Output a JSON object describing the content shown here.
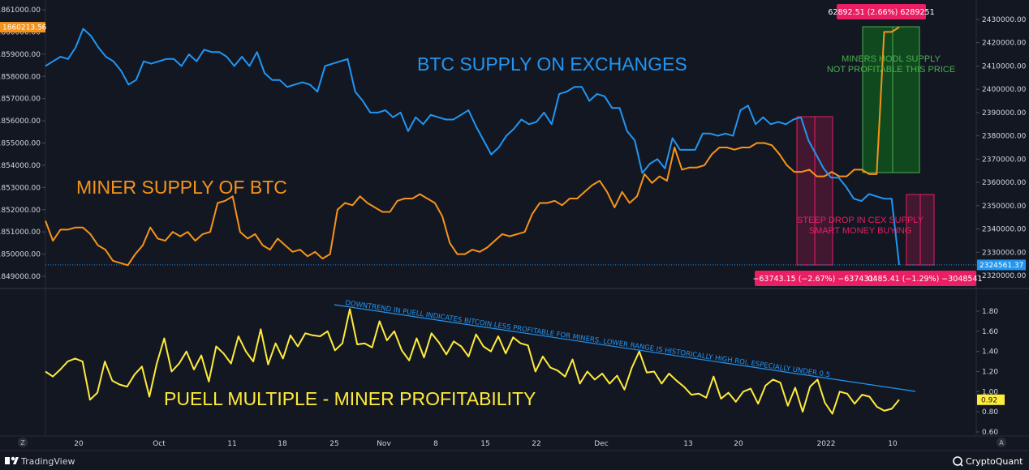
{
  "footer": {
    "left_brand": "TradingView",
    "right_brand": "CryptoQuant",
    "left_marker": "Z",
    "right_marker": "A"
  },
  "chart_data": [
    {
      "type": "line",
      "panel": "top",
      "x_labels": [
        "20",
        "Oct",
        "11",
        "18",
        "25",
        "Nov",
        "8",
        "15",
        "22",
        "Dec",
        "13",
        "20",
        "2022",
        "10"
      ],
      "left_axis": {
        "ticks": [
          1849000,
          1850000,
          1851000,
          1852000,
          1853000,
          1854000,
          1855000,
          1856000,
          1857000,
          1858000,
          1859000,
          1860000,
          1861000
        ],
        "range": [
          1848600,
          1861500
        ],
        "current_label": "1860213.56",
        "current_value": 1860213.56,
        "current_color": "#f7931a"
      },
      "right_axis": {
        "ticks": [
          2320000,
          2330000,
          2340000,
          2350000,
          2360000,
          2370000,
          2380000,
          2390000,
          2400000,
          2410000,
          2420000,
          2430000
        ],
        "range": [
          2318000,
          2434000
        ],
        "current_label": "2324561.37",
        "current_value": 2324561.37,
        "current_color": "#2196f3"
      },
      "series": [
        {
          "name": "BTC SUPPLY ON EXCHANGES",
          "axis": "right",
          "color": "#2196f3",
          "values": [
            2410000,
            2412000,
            2414000,
            2413000,
            2418000,
            2426000,
            2423000,
            2418000,
            2414000,
            2412000,
            2408000,
            2402000,
            2404000,
            2412000,
            2411000,
            2412000,
            2413000,
            2413000,
            2410000,
            2415000,
            2412000,
            2417000,
            2416000,
            2416000,
            2414000,
            2410000,
            2414000,
            2410000,
            2416000,
            2407000,
            2404000,
            2404000,
            2401000,
            2402000,
            2403000,
            2402000,
            2399000,
            2410000,
            2411000,
            2412000,
            2413000,
            2399000,
            2395000,
            2390000,
            2390000,
            2391000,
            2388000,
            2390000,
            2382000,
            2388000,
            2385000,
            2389000,
            2388000,
            2387000,
            2387000,
            2389000,
            2391000,
            2384000,
            2378000,
            2372000,
            2375000,
            2380000,
            2383000,
            2387000,
            2385000,
            2386000,
            2390000,
            2385000,
            2398000,
            2399000,
            2401000,
            2401000,
            2395000,
            2398000,
            2397000,
            2392000,
            2392000,
            2382000,
            2378000,
            2364000,
            2368000,
            2370000,
            2366000,
            2379000,
            2374000,
            2374000,
            2374000,
            2381000,
            2381000,
            2380000,
            2381000,
            2380000,
            2391000,
            2393000,
            2385000,
            2388000,
            2385000,
            2386000,
            2385000,
            2387000,
            2388000,
            2378000,
            2372000,
            2366000,
            2362000,
            2362000,
            2358000,
            2353000,
            2352000,
            2355000,
            2354000,
            2353000,
            2353000,
            2324561.37
          ]
        },
        {
          "name": "MINER SUPPLY OF BTC",
          "axis": "left",
          "color": "#f7931a",
          "values": [
            1851500,
            1850600,
            1851100,
            1851100,
            1851200,
            1851200,
            1850900,
            1850400,
            1850200,
            1849700,
            1849600,
            1849500,
            1850000,
            1850400,
            1851200,
            1850700,
            1850600,
            1851000,
            1850800,
            1851000,
            1850600,
            1850900,
            1851000,
            1852300,
            1852400,
            1852600,
            1851000,
            1850700,
            1850900,
            1850400,
            1850200,
            1850700,
            1850400,
            1850100,
            1850200,
            1849900,
            1850100,
            1849800,
            1850000,
            1852000,
            1852300,
            1852200,
            1852600,
            1852300,
            1852100,
            1851900,
            1851900,
            1852400,
            1852500,
            1852500,
            1852700,
            1852500,
            1852300,
            1851700,
            1850500,
            1850000,
            1850000,
            1850200,
            1850100,
            1850300,
            1850600,
            1850900,
            1850800,
            1850900,
            1851000,
            1851800,
            1852300,
            1852300,
            1852400,
            1852200,
            1852500,
            1852500,
            1852800,
            1853100,
            1853300,
            1852800,
            1852100,
            1852800,
            1852300,
            1852600,
            1853600,
            1853200,
            1853500,
            1853300,
            1854800,
            1853800,
            1853900,
            1853900,
            1854000,
            1854500,
            1854800,
            1854800,
            1854700,
            1854800,
            1854800,
            1855000,
            1855000,
            1854900,
            1854500,
            1854000,
            1853700,
            1853700,
            1853800,
            1853500,
            1853500,
            1853700,
            1853500,
            1853500,
            1853800,
            1853800,
            1853600,
            1853600,
            1860000,
            1860000,
            1860213.56
          ]
        }
      ],
      "annotations": [
        {
          "text": "BTC SUPPLY ON EXCHANGES",
          "color": "#2196f3"
        },
        {
          "text": "MINER SUPPLY OF BTC",
          "color": "#f7931a"
        },
        {
          "text": "MINERS HODL SUPPLY",
          "color": "#4caf50"
        },
        {
          "text": "NOT PROFITABLE THIS PRICE",
          "color": "#4caf50"
        },
        {
          "text": "STEEP DROP IN CEX SUPPLY",
          "color": "#e91e63"
        },
        {
          "text": "SMART MONEY BUYING",
          "color": "#e91e63"
        }
      ],
      "measure_labels": [
        {
          "text": "62892.51 (2.66%) 6289251",
          "color": "#e91e63"
        },
        {
          "text": "−63743.15 (−2.67%) −6374315",
          "color": "#e91e63"
        },
        {
          "text": "0485.41 (−1.29%) −3048541",
          "color": "#e91e63"
        }
      ]
    },
    {
      "type": "line",
      "panel": "bottom",
      "right_axis": {
        "ticks": [
          0.6,
          0.8,
          1.0,
          1.2,
          1.4,
          1.6,
          1.8
        ],
        "tick_labels": [
          "0.60",
          "0.80",
          "1.00",
          "1.20",
          "1.40",
          "1.60",
          "1.80"
        ],
        "range": [
          0.56,
          1.9
        ],
        "current_label": "0.92",
        "current_value": 0.92,
        "current_color": "#ffeb3b"
      },
      "series": [
        {
          "name": "PUELL MULTIPLE - MINER PROFITABILITY",
          "color": "#ffeb3b",
          "values": [
            1.2,
            1.15,
            1.22,
            1.3,
            1.33,
            1.3,
            0.92,
            0.99,
            1.3,
            1.11,
            1.07,
            1.05,
            1.17,
            1.25,
            0.95,
            1.28,
            1.53,
            1.2,
            1.28,
            1.4,
            1.22,
            1.36,
            1.1,
            1.45,
            1.38,
            1.28,
            1.55,
            1.4,
            1.3,
            1.62,
            1.27,
            1.48,
            1.33,
            1.56,
            1.45,
            1.58,
            1.56,
            1.55,
            1.6,
            1.41,
            1.48,
            1.82,
            1.47,
            1.48,
            1.44,
            1.7,
            1.51,
            1.6,
            1.41,
            1.31,
            1.53,
            1.34,
            1.58,
            1.49,
            1.37,
            1.5,
            1.45,
            1.35,
            1.57,
            1.45,
            1.4,
            1.55,
            1.38,
            1.54,
            1.48,
            1.46,
            1.2,
            1.35,
            1.24,
            1.21,
            1.15,
            1.32,
            1.08,
            1.2,
            1.12,
            1.18,
            1.08,
            1.16,
            1.02,
            1.24,
            1.4,
            1.19,
            1.2,
            1.08,
            1.18,
            1.11,
            1.05,
            0.97,
            0.98,
            0.94,
            1.15,
            0.93,
            0.99,
            0.9,
            1.0,
            1.03,
            0.88,
            1.06,
            1.12,
            1.09,
            0.86,
            1.04,
            0.8,
            1.05,
            1.12,
            0.89,
            0.78,
            1.0,
            0.98,
            0.88,
            0.97,
            0.95,
            0.85,
            0.81,
            0.83,
            0.92
          ]
        }
      ],
      "annotations": [
        {
          "text": "DOWNTREND IN PUELL INDICATES BITCOIN LESS PROFITABLE FOR MINERS. LOWER RANGE IS HISTORICALLY HIGH ROI, ESPECIALLY UNDER 0.5",
          "color": "#2196f3"
        },
        {
          "text": "PUELL MULTIPLE - MINER PROFITABILITY",
          "color": "#ffeb3b"
        }
      ]
    }
  ]
}
